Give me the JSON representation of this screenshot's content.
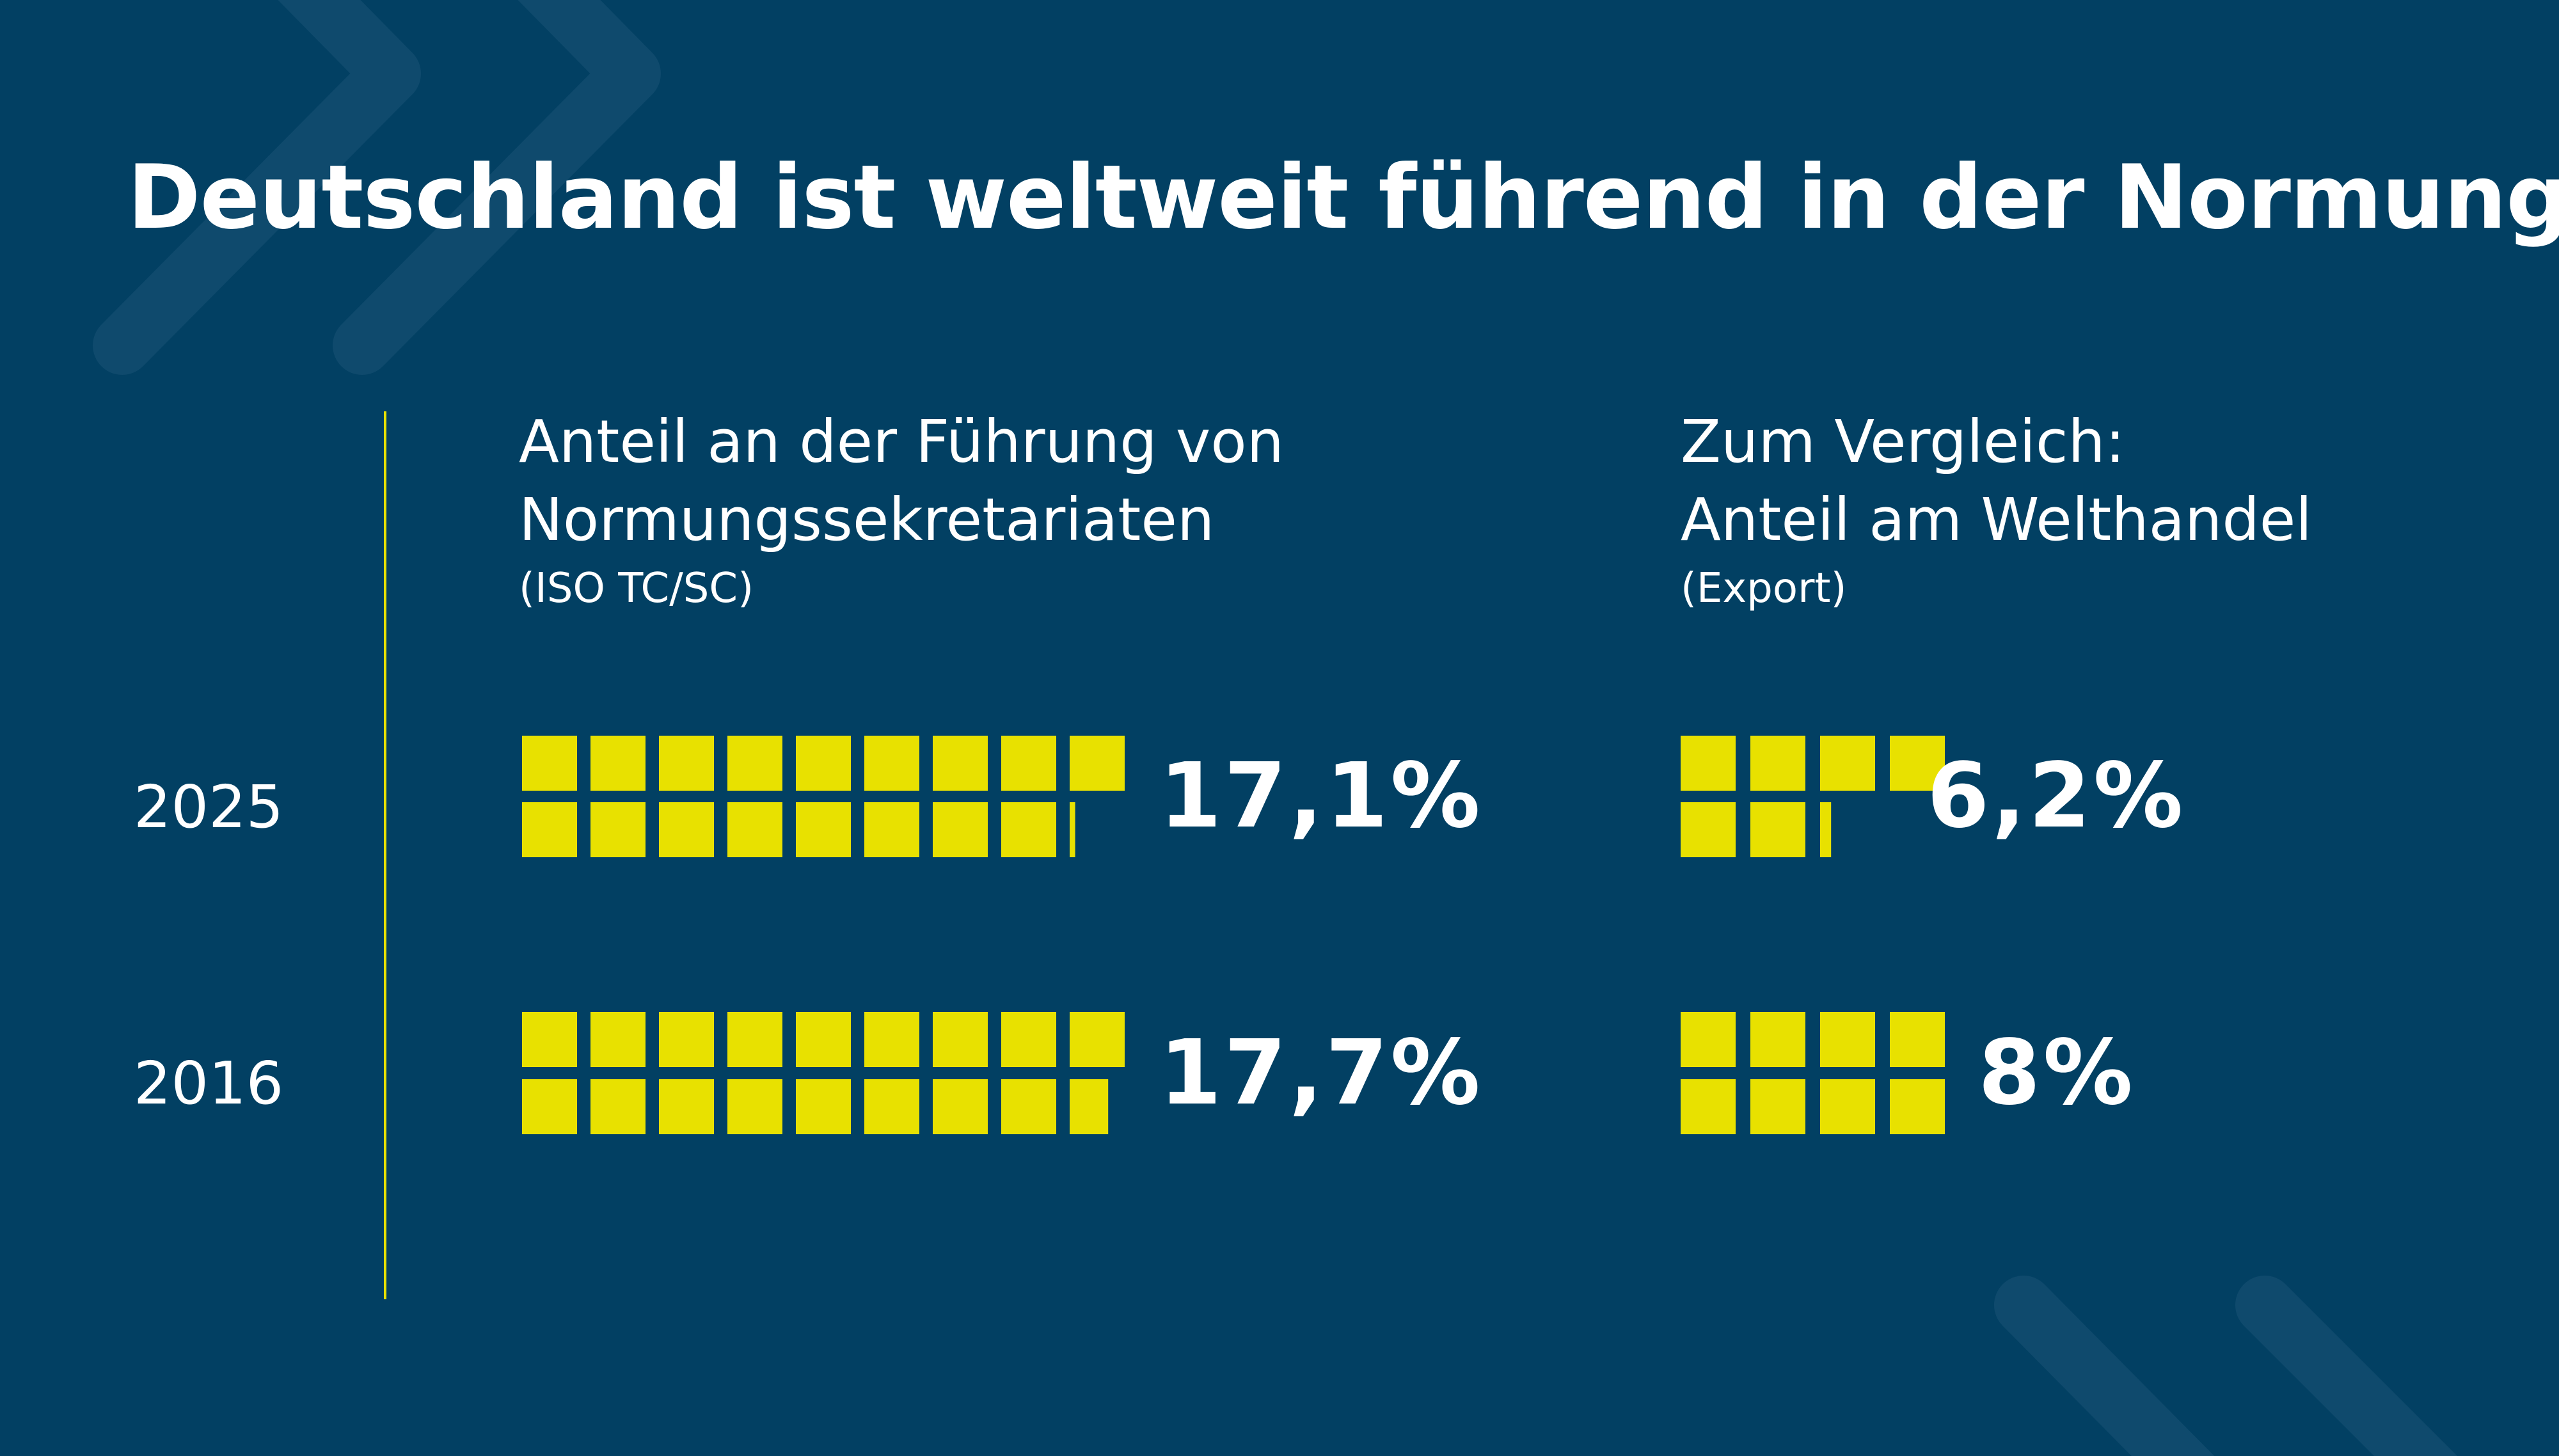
{
  "title": "Deutschland ist weltweit führend in der Normung",
  "colors": {
    "background": "#024063",
    "squares": "#e8e100",
    "text": "#ffffff",
    "decor": "#0f4a6d"
  },
  "chart_data": {
    "type": "bar",
    "subtype": "unit-square pictogram (1 square = 1%)",
    "categories": [
      "2025",
      "2016"
    ],
    "panels": [
      {
        "title_lines": [
          "Anteil an der Führung von",
          "Normungssekretariaten"
        ],
        "subtitle": "(ISO TC/SC)",
        "values": [
          17.1,
          17.7
        ],
        "labels": [
          "17,1%",
          "17,7%"
        ]
      },
      {
        "title_lines": [
          "Zum Vergleich:",
          "Anteil am Welthandel"
        ],
        "subtitle": "(Export)",
        "values": [
          6.2,
          8
        ],
        "labels": [
          "6,2%",
          "8%"
        ]
      }
    ]
  }
}
